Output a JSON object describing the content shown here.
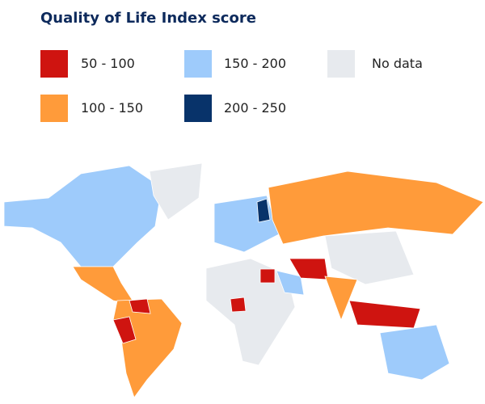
{
  "title": "Quality of Life Index score",
  "legend": [
    {
      "label": "50 - 100",
      "color": "#cf1410"
    },
    {
      "label": "100 - 150",
      "color": "#ff9b3a"
    },
    {
      "label": "150 - 200",
      "color": "#9ecbfb"
    },
    {
      "label": "200 - 250",
      "color": "#08336a"
    },
    {
      "label": "No data",
      "color": "#e7eaee"
    }
  ]
}
